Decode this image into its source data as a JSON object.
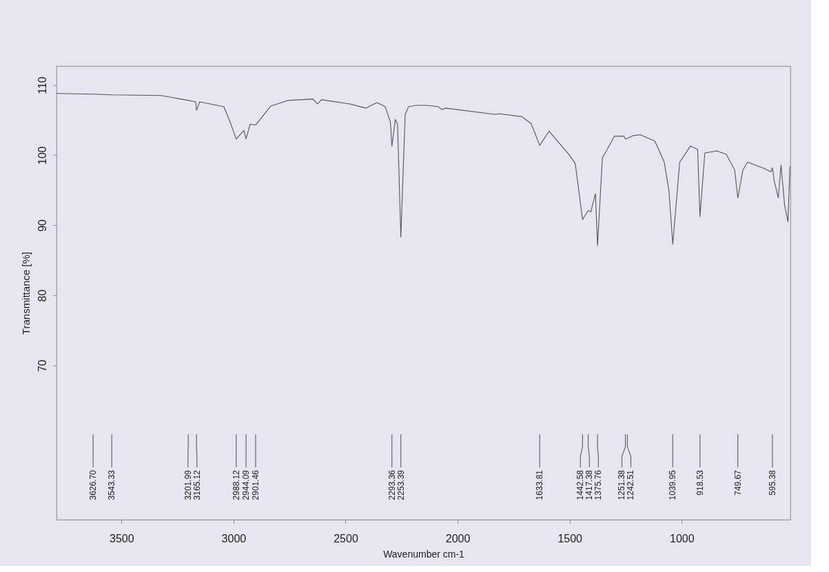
{
  "chart_data": {
    "type": "line",
    "xlabel": "Wavenumber cm-1",
    "ylabel": "Transmittance [%]",
    "xlim": [
      3790,
      515
    ],
    "xticks": [
      3500,
      3000,
      2500,
      2000,
      1500,
      1000
    ],
    "ylim": [
      48,
      112.7
    ],
    "yticks": [
      70,
      80,
      90,
      100,
      110
    ],
    "grid": false,
    "marker": "none",
    "line_style": "solid",
    "x": [
      3790,
      3626.7,
      3543.33,
      3323,
      3201.99,
      3169,
      3165.12,
      3151,
      3043,
      3015,
      2988.12,
      2954,
      2944.09,
      2926,
      2901.46,
      2834,
      2757,
      2646,
      2625,
      2608,
      2481,
      2409,
      2360,
      2323,
      2300,
      2293.36,
      2278,
      2268,
      2253.39,
      2234,
      2219,
      2185,
      2138,
      2086,
      2071,
      2053,
      1831,
      1815,
      1714,
      1672,
      1633.81,
      1592,
      1501,
      1475,
      1442.58,
      1417.38,
      1406,
      1385,
      1375.76,
      1354,
      1300,
      1258,
      1251.38,
      1242.51,
      1215,
      1185,
      1120,
      1078,
      1057,
      1039.95,
      1009,
      961,
      929,
      918.53,
      897,
      844,
      801,
      764,
      749.67,
      727,
      706,
      632,
      602,
      595.38,
      587,
      569,
      557,
      541,
      526,
      517
    ],
    "series": [
      {
        "color": "#555555",
        "values": [
          108.8,
          108.7,
          108.6,
          108.5,
          107.8,
          107.6,
          106.4,
          107.6,
          106.9,
          104.7,
          102.3,
          103.5,
          102.3,
          104.4,
          104.3,
          107.0,
          107.8,
          108.0,
          107.3,
          107.9,
          107.3,
          106.7,
          107.5,
          106.9,
          104.7,
          101.3,
          105.1,
          104.4,
          88.3,
          105.8,
          106.9,
          107.1,
          107.1,
          106.9,
          106.5,
          106.7,
          105.8,
          105.9,
          105.5,
          104.5,
          101.4,
          103.4,
          100.0,
          98.8,
          90.8,
          92.1,
          91.9,
          94.5,
          87.1,
          99.6,
          102.7,
          102.7,
          102.3,
          102.4,
          102.8,
          102.9,
          102.0,
          99.0,
          94.9,
          87.3,
          99.0,
          101.3,
          100.8,
          91.2,
          100.3,
          100.6,
          100.1,
          97.9,
          93.9,
          97.9,
          99.0,
          98.1,
          97.6,
          98.2,
          96.3,
          93.9,
          98.6,
          92.9,
          90.5,
          98.4
        ]
      }
    ],
    "annotations": [
      {
        "text": "3626.70",
        "x": 3626.7
      },
      {
        "text": "3543.33",
        "x": 3543.33
      },
      {
        "text": "3201.99",
        "x": 3201.99
      },
      {
        "text": "3165.12",
        "x": 3165.12
      },
      {
        "text": "2988.12",
        "x": 2988.12
      },
      {
        "text": "2944.09",
        "x": 2944.09
      },
      {
        "text": "2901.46",
        "x": 2901.46
      },
      {
        "text": "2293.36",
        "x": 2293.36
      },
      {
        "text": "2253.39",
        "x": 2253.39
      },
      {
        "text": "1633.81",
        "x": 1633.81
      },
      {
        "text": "1442.58",
        "x": 1442.58
      },
      {
        "text": "1417.38",
        "x": 1417.38
      },
      {
        "text": "1375.76",
        "x": 1375.76
      },
      {
        "text": "1251.38",
        "x": 1251.38
      },
      {
        "text": "1242.51",
        "x": 1242.51
      },
      {
        "text": "1039.95",
        "x": 1039.95
      },
      {
        "text": "918.53",
        "x": 918.53
      },
      {
        "text": "749.67",
        "x": 749.67
      },
      {
        "text": "595.38",
        "x": 595.38
      }
    ]
  }
}
